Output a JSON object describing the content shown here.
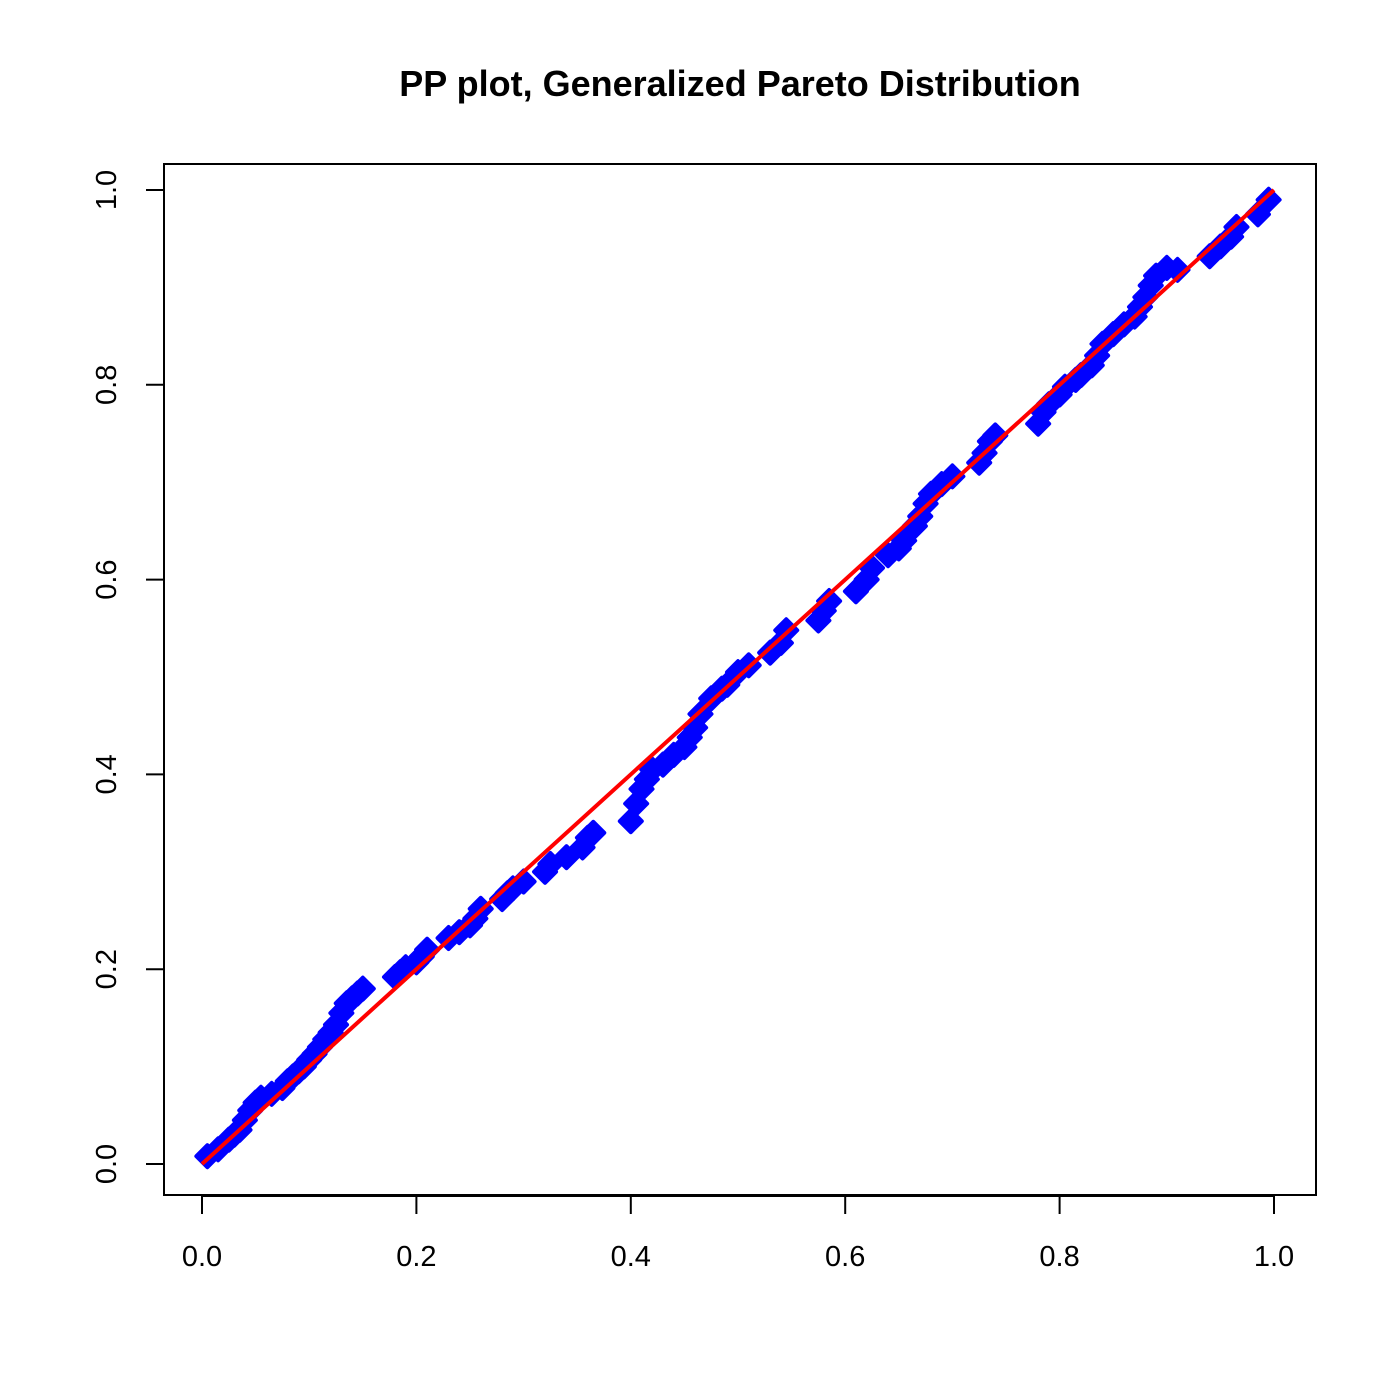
{
  "chart_data": {
    "type": "scatter",
    "title": "PP plot, Generalized Pareto Distribution",
    "xlabel": "",
    "ylabel": "",
    "xlim": [
      0,
      1
    ],
    "ylim": [
      0,
      1
    ],
    "x_ticks": [
      "0.0",
      "0.2",
      "0.4",
      "0.6",
      "0.8",
      "1.0"
    ],
    "y_ticks": [
      "0.0",
      "0.2",
      "0.4",
      "0.6",
      "0.8",
      "1.0"
    ],
    "grid": false,
    "legend": "none",
    "series": [
      {
        "type": "scatter",
        "marker": "diamond",
        "color": "#0000ff",
        "x": [
          0.005,
          0.015,
          0.025,
          0.03,
          0.035,
          0.04,
          0.045,
          0.05,
          0.055,
          0.065,
          0.075,
          0.08,
          0.085,
          0.09,
          0.095,
          0.1,
          0.105,
          0.11,
          0.115,
          0.12,
          0.125,
          0.13,
          0.135,
          0.14,
          0.145,
          0.15,
          0.18,
          0.185,
          0.19,
          0.2,
          0.205,
          0.21,
          0.23,
          0.24,
          0.25,
          0.255,
          0.26,
          0.28,
          0.285,
          0.29,
          0.3,
          0.32,
          0.325,
          0.34,
          0.355,
          0.36,
          0.365,
          0.4,
          0.405,
          0.41,
          0.415,
          0.42,
          0.43,
          0.44,
          0.45,
          0.455,
          0.46,
          0.465,
          0.475,
          0.485,
          0.49,
          0.5,
          0.51,
          0.53,
          0.54,
          0.545,
          0.575,
          0.58,
          0.585,
          0.61,
          0.62,
          0.625,
          0.64,
          0.65,
          0.655,
          0.665,
          0.67,
          0.675,
          0.68,
          0.69,
          0.7,
          0.725,
          0.73,
          0.735,
          0.74,
          0.78,
          0.785,
          0.79,
          0.8,
          0.805,
          0.815,
          0.82,
          0.83,
          0.835,
          0.84,
          0.85,
          0.86,
          0.87,
          0.875,
          0.88,
          0.885,
          0.89,
          0.9,
          0.91,
          0.94,
          0.95,
          0.96,
          0.965,
          0.985,
          0.995
        ],
        "y": [
          0.008,
          0.015,
          0.025,
          0.03,
          0.035,
          0.045,
          0.055,
          0.063,
          0.068,
          0.072,
          0.078,
          0.085,
          0.09,
          0.095,
          0.1,
          0.107,
          0.113,
          0.12,
          0.128,
          0.135,
          0.143,
          0.155,
          0.165,
          0.17,
          0.175,
          0.18,
          0.192,
          0.197,
          0.202,
          0.207,
          0.213,
          0.22,
          0.232,
          0.238,
          0.245,
          0.252,
          0.262,
          0.272,
          0.278,
          0.283,
          0.29,
          0.3,
          0.308,
          0.315,
          0.325,
          0.335,
          0.34,
          0.352,
          0.37,
          0.385,
          0.395,
          0.405,
          0.41,
          0.42,
          0.428,
          0.438,
          0.448,
          0.462,
          0.478,
          0.488,
          0.492,
          0.505,
          0.512,
          0.525,
          0.535,
          0.548,
          0.558,
          0.568,
          0.578,
          0.588,
          0.6,
          0.612,
          0.625,
          0.632,
          0.64,
          0.655,
          0.665,
          0.678,
          0.688,
          0.698,
          0.706,
          0.72,
          0.73,
          0.742,
          0.748,
          0.76,
          0.772,
          0.78,
          0.79,
          0.798,
          0.805,
          0.81,
          0.82,
          0.83,
          0.842,
          0.852,
          0.862,
          0.87,
          0.88,
          0.89,
          0.902,
          0.912,
          0.92,
          0.918,
          0.932,
          0.942,
          0.952,
          0.962,
          0.975,
          0.99
        ]
      },
      {
        "type": "line",
        "color": "#ff0000",
        "x": [
          0,
          1
        ],
        "y": [
          0,
          1
        ]
      }
    ]
  }
}
